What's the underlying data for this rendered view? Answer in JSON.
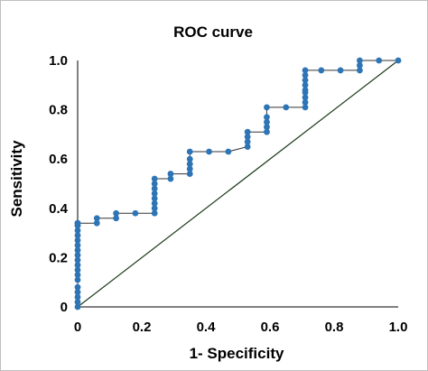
{
  "chart_data": {
    "type": "line",
    "title": "ROC curve",
    "xlabel": "1- Specificity",
    "ylabel": "Sensitivity",
    "xlim": [
      0,
      1
    ],
    "ylim": [
      0,
      1
    ],
    "x_ticks": [
      {
        "value": 0,
        "label": "0"
      },
      {
        "value": 0.2,
        "label": "0.2"
      },
      {
        "value": 0.4,
        "label": "0.4"
      },
      {
        "value": 0.6,
        "label": "0.6"
      },
      {
        "value": 0.8,
        "label": "0.8"
      },
      {
        "value": 1,
        "label": "1.0"
      }
    ],
    "y_ticks": [
      {
        "value": 0,
        "label": "0"
      },
      {
        "value": 0.2,
        "label": "0.2"
      },
      {
        "value": 0.4,
        "label": "0.4"
      },
      {
        "value": 0.6,
        "label": "0.6"
      },
      {
        "value": 0.8,
        "label": "0.8"
      },
      {
        "value": 1,
        "label": "1.0"
      }
    ],
    "grid": false,
    "legend": "none",
    "series": [
      {
        "color": "#2e75b6",
        "x": [
          0,
          0,
          0,
          0,
          0,
          0,
          0,
          0,
          0,
          0,
          0,
          0,
          0,
          0,
          0,
          0,
          0,
          0,
          0,
          0,
          0.06,
          0.06,
          0.12,
          0.12,
          0.18,
          0.24,
          0.24,
          0.24,
          0.24,
          0.24,
          0.24,
          0.24,
          0.24,
          0.29,
          0.29,
          0.35,
          0.35,
          0.35,
          0.35,
          0.35,
          0.41,
          0.47,
          0.53,
          0.53,
          0.53,
          0.53,
          0.59,
          0.59,
          0.59,
          0.59,
          0.59,
          0.65,
          0.71,
          0.71,
          0.71,
          0.71,
          0.71,
          0.71,
          0.71,
          0.71,
          0.71,
          0.76,
          0.82,
          0.88,
          0.88,
          0.88,
          0.94,
          1.0
        ],
        "y": [
          0,
          0.02,
          0.04,
          0.06,
          0.08,
          0.11,
          0.13,
          0.15,
          0.17,
          0.19,
          0.21,
          0.23,
          0.25,
          0.27,
          0.29,
          0.31,
          0.33,
          0.33,
          0.34,
          0.34,
          0.34,
          0.36,
          0.36,
          0.38,
          0.38,
          0.38,
          0.4,
          0.42,
          0.44,
          0.46,
          0.48,
          0.5,
          0.52,
          0.52,
          0.54,
          0.54,
          0.56,
          0.58,
          0.6,
          0.63,
          0.63,
          0.63,
          0.65,
          0.67,
          0.69,
          0.71,
          0.71,
          0.73,
          0.75,
          0.77,
          0.81,
          0.81,
          0.81,
          0.83,
          0.85,
          0.87,
          0.88,
          0.9,
          0.92,
          0.94,
          0.96,
          0.96,
          0.96,
          0.96,
          0.98,
          1.0,
          1.0,
          1.0
        ]
      },
      {
        "type": "line",
        "color": "#1a3a1a",
        "x": [
          0,
          1
        ],
        "y": [
          0,
          1
        ]
      }
    ]
  }
}
